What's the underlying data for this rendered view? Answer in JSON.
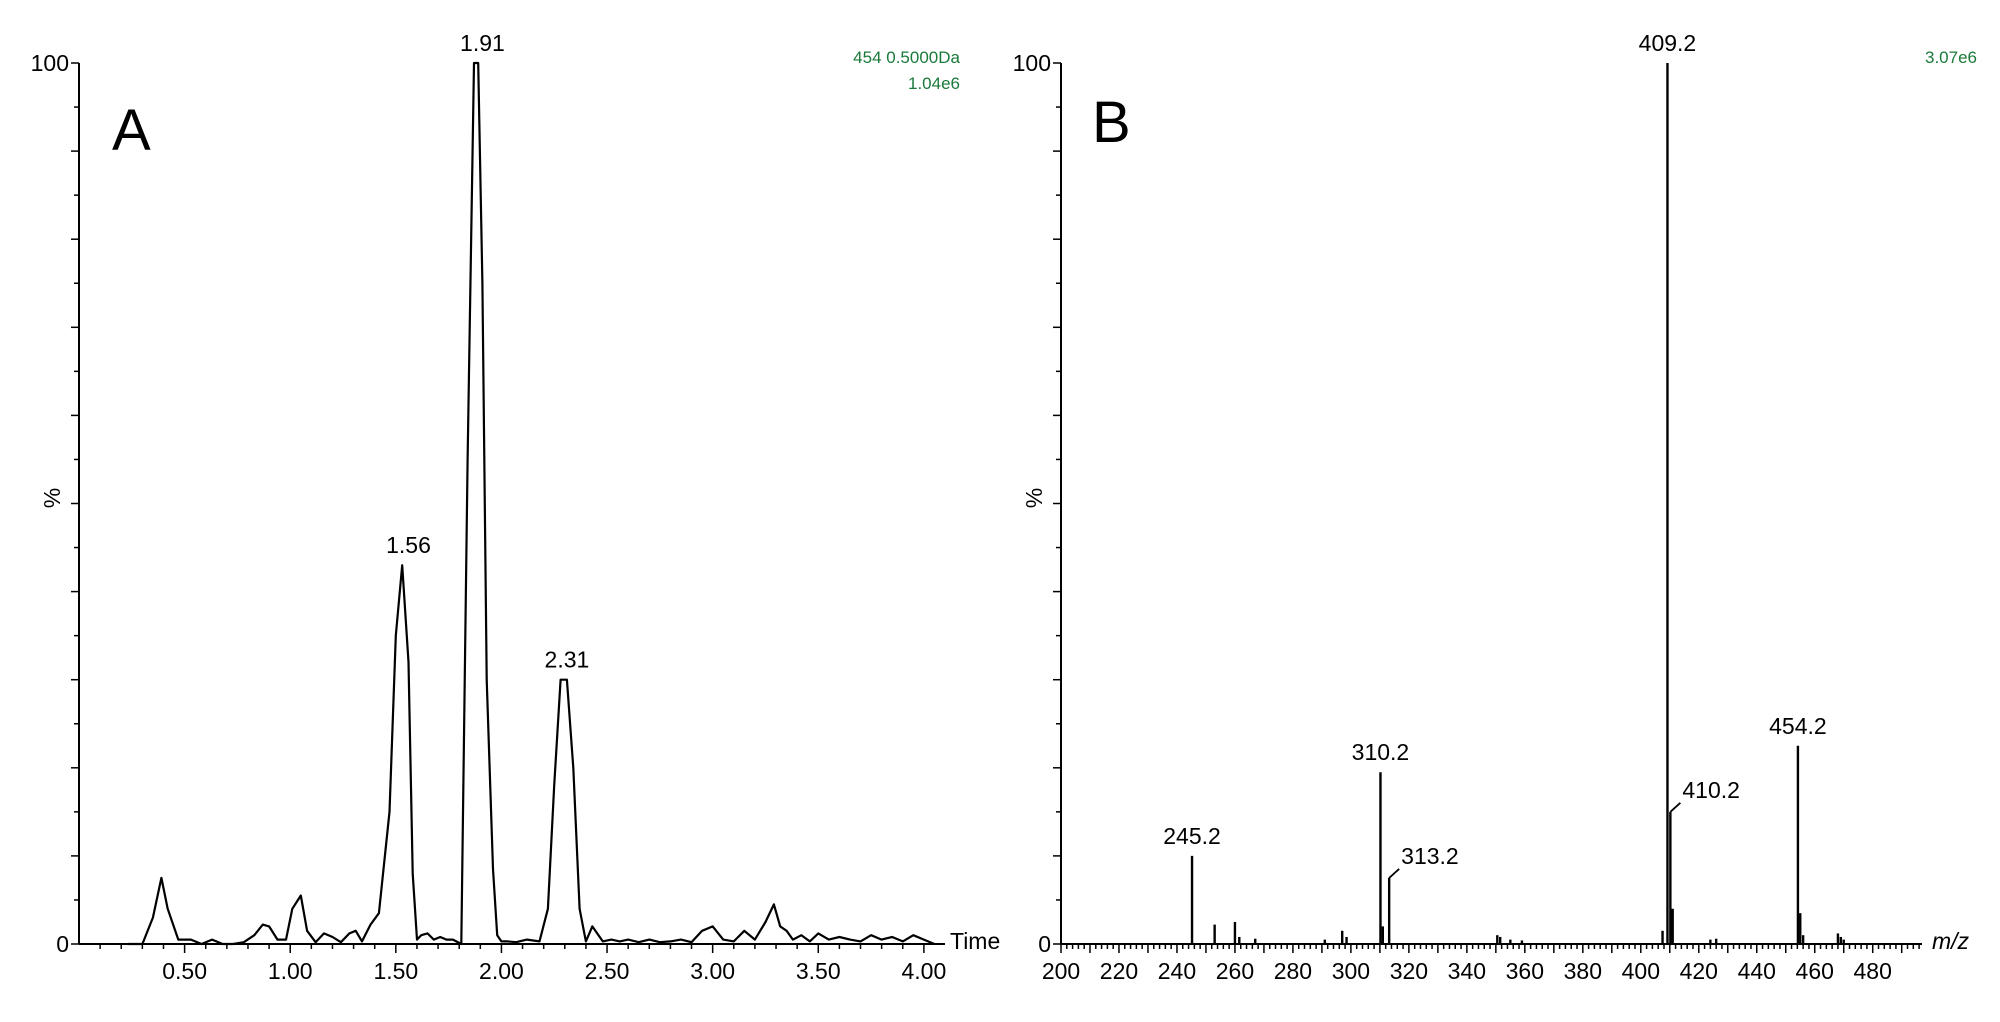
{
  "chart_data": [
    {
      "type": "line",
      "panel_label": "A",
      "xlabel": "Time",
      "ylabel": "%",
      "info_lines": [
        "454 0.5000Da",
        "1.04e6"
      ],
      "info_color": "#1a7a3a",
      "xlim": [
        0.0,
        4.1
      ],
      "ylim": [
        0,
        100
      ],
      "x_tick_labels": [
        "0.50",
        "1.00",
        "1.50",
        "2.00",
        "2.50",
        "3.00",
        "3.50",
        "4.00"
      ],
      "x_ticks": [
        0.5,
        1.0,
        1.5,
        2.0,
        2.5,
        3.0,
        3.5,
        4.0
      ],
      "y_tick_labels": [
        "0",
        "100"
      ],
      "y_ticks": [
        0,
        100
      ],
      "peak_labels": [
        {
          "text": "1.56",
          "x": 1.56,
          "y": 43
        },
        {
          "text": "1.91",
          "x": 1.91,
          "y": 100
        },
        {
          "text": "2.31",
          "x": 2.31,
          "y": 30
        }
      ],
      "series": [
        {
          "x": [
            0.23,
            0.3,
            0.35,
            0.39,
            0.42,
            0.47,
            0.53,
            0.58,
            0.63,
            0.68,
            0.73,
            0.78,
            0.83,
            0.87,
            0.9,
            0.94,
            0.98,
            1.01,
            1.05,
            1.08,
            1.12,
            1.16,
            1.2,
            1.24,
            1.28,
            1.31,
            1.34,
            1.38,
            1.42,
            1.47,
            1.5,
            1.53,
            1.56,
            1.58,
            1.6,
            1.62,
            1.65,
            1.68,
            1.71,
            1.74,
            1.77,
            1.81,
            1.84,
            1.87,
            1.89,
            1.91,
            1.93,
            1.96,
            1.98,
            2.0,
            2.03,
            2.07,
            2.12,
            2.18,
            2.22,
            2.25,
            2.28,
            2.31,
            2.34,
            2.37,
            2.4,
            2.43,
            2.48,
            2.52,
            2.56,
            2.6,
            2.65,
            2.7,
            2.75,
            2.8,
            2.85,
            2.9,
            2.95,
            3.0,
            3.05,
            3.1,
            3.15,
            3.2,
            3.25,
            3.29,
            3.32,
            3.35,
            3.38,
            3.42,
            3.46,
            3.5,
            3.55,
            3.6,
            3.65,
            3.7,
            3.75,
            3.8,
            3.85,
            3.9,
            3.95,
            4.0,
            4.05
          ],
          "y": [
            0,
            0,
            3,
            7.5,
            4,
            0.5,
            0.5,
            0,
            0.5,
            0,
            0,
            0.2,
            1,
            2.2,
            2,
            0.5,
            0.5,
            4,
            5.5,
            1.5,
            0.2,
            1.2,
            0.8,
            0.2,
            1.2,
            1.5,
            0.3,
            2.2,
            3.5,
            15,
            35,
            43,
            32,
            8,
            0.5,
            1,
            1.2,
            0.5,
            0.8,
            0.5,
            0.5,
            0,
            55,
            100,
            100,
            75,
            30,
            8.5,
            1,
            0.3,
            0.3,
            0.2,
            0.5,
            0.3,
            4,
            18,
            30,
            30,
            20,
            4,
            0.3,
            2,
            0.3,
            0.5,
            0.3,
            0.5,
            0.2,
            0.5,
            0.2,
            0.3,
            0.5,
            0.2,
            1.5,
            2,
            0.5,
            0.3,
            1.5,
            0.5,
            2.5,
            4.5,
            2,
            1.5,
            0.5,
            1,
            0.3,
            1.2,
            0.5,
            0.8,
            0.5,
            0.3,
            1,
            0.5,
            0.8,
            0.3,
            1,
            0.5,
            0
          ]
        }
      ]
    },
    {
      "type": "bar",
      "panel_label": "B",
      "xlabel": "m/z",
      "ylabel": "%",
      "info_lines": [
        "3.07e6"
      ],
      "info_color": "#1a7a3a",
      "xlim": [
        200,
        497
      ],
      "ylim": [
        0,
        100
      ],
      "x_tick_labels": [
        "200",
        "220",
        "240",
        "260",
        "280",
        "300",
        "320",
        "340",
        "360",
        "380",
        "400",
        "420",
        "440",
        "460",
        "480"
      ],
      "x_ticks": [
        200,
        220,
        240,
        260,
        280,
        300,
        320,
        340,
        360,
        380,
        400,
        420,
        440,
        460,
        480
      ],
      "y_tick_labels": [
        "0",
        "100"
      ],
      "y_ticks": [
        0,
        100
      ],
      "peak_labels": [
        {
          "text": "245.2",
          "x": 245.2,
          "y": 10
        },
        {
          "text": "310.2",
          "x": 310.2,
          "y": 19.5
        },
        {
          "text": "313.2",
          "x": 313.2,
          "y": 7.5
        },
        {
          "text": "409.2",
          "x": 409.2,
          "y": 100
        },
        {
          "text": "410.2",
          "x": 410.2,
          "y": 15
        },
        {
          "text": "454.2",
          "x": 454.2,
          "y": 22.5
        }
      ],
      "peaks": {
        "mz": [
          245.2,
          253.0,
          260.0,
          261.5,
          267.0,
          291.0,
          297.0,
          298.5,
          310.2,
          311.0,
          313.2,
          350.5,
          351.5,
          355.0,
          359.0,
          407.5,
          409.2,
          410.2,
          411.0,
          424.0,
          426.0,
          454.2,
          455.0,
          456.0,
          468.0,
          469.0,
          470.0
        ],
        "intensity": [
          10,
          2.2,
          2.5,
          0.8,
          0.6,
          0.5,
          1.5,
          0.8,
          19.5,
          2.0,
          7.5,
          1.0,
          0.8,
          0.5,
          0.4,
          1.5,
          100,
          15,
          4,
          0.5,
          0.6,
          22.5,
          3.5,
          1.0,
          1.2,
          0.8,
          0.5
        ]
      }
    }
  ]
}
